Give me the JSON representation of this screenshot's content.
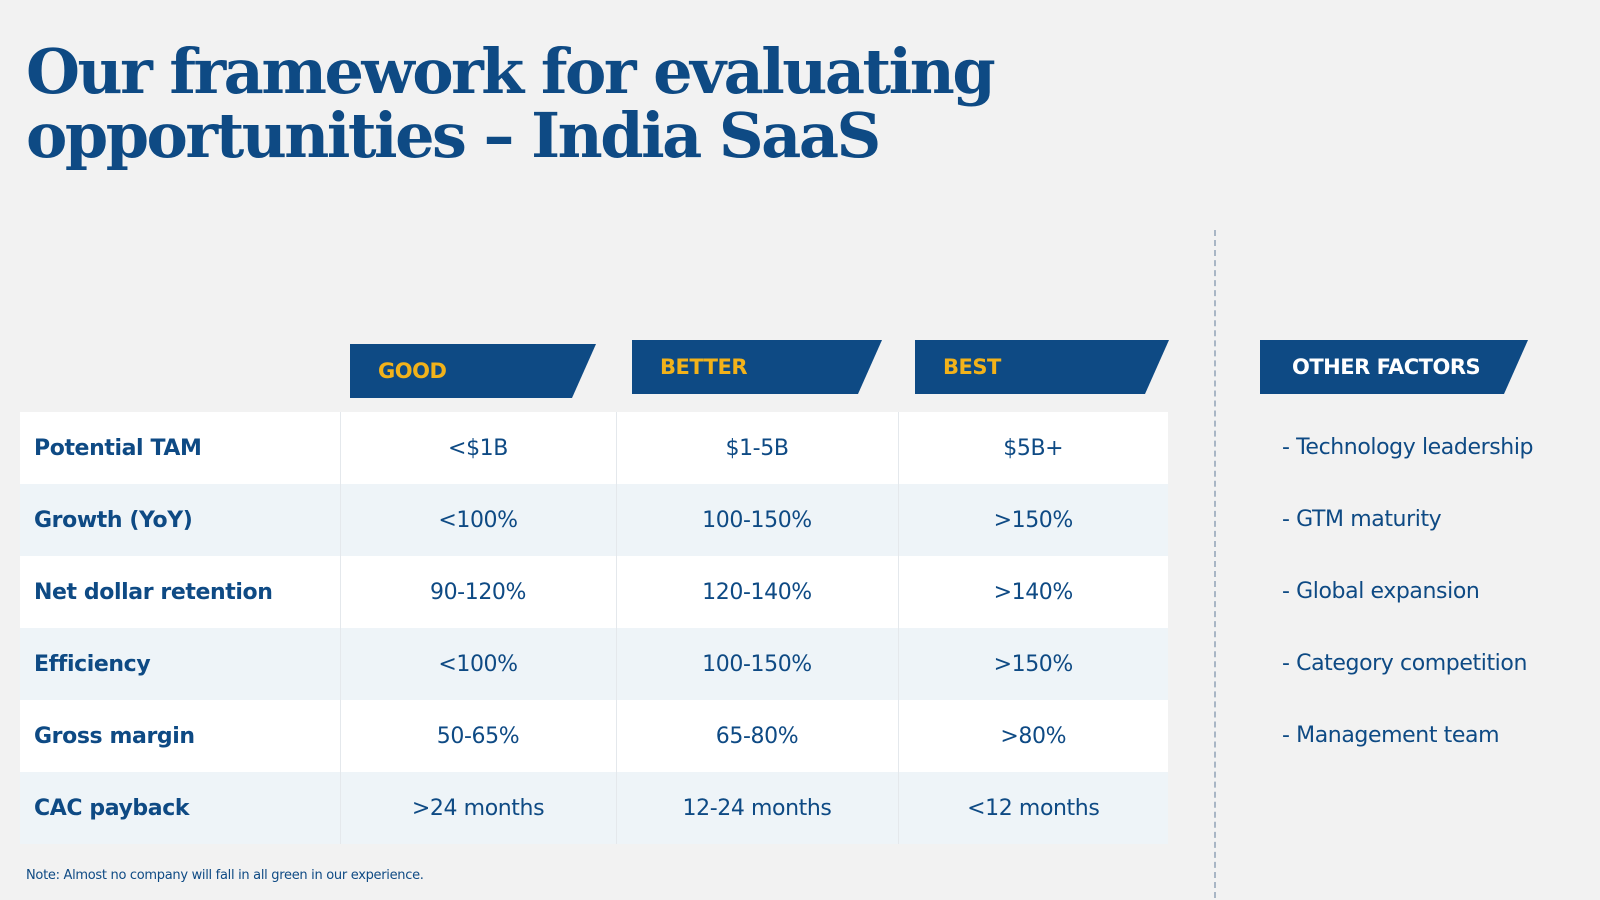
{
  "title": {
    "line1": "Our framework for evaluating",
    "line2": "opportunities – India SaaS"
  },
  "tiers": {
    "good": "GOOD",
    "better": "BETTER",
    "best": "BEST"
  },
  "other_factors": {
    "heading": "OTHER FACTORS",
    "items": [
      "- Technology leadership",
      "- GTM maturity",
      "- Global expansion",
      "- Category competition",
      "- Management team"
    ]
  },
  "rows": [
    {
      "label": "Potential TAM",
      "good": "<$1B",
      "better": "$1-5B",
      "best": "$5B+"
    },
    {
      "label": "Growth (YoY)",
      "good": "<100%",
      "better": "100-150%",
      "best": ">150%"
    },
    {
      "label": "Net dollar retention",
      "good": "90-120%",
      "better": "120-140%",
      "best": ">140%"
    },
    {
      "label": "Efficiency",
      "good": "<100%",
      "better": "100-150%",
      "best": ">150%"
    },
    {
      "label": "Gross margin",
      "good": "50-65%",
      "better": "65-80%",
      "best": ">80%"
    },
    {
      "label": "CAC payback",
      "good": ">24 months",
      "better": "12-24 months",
      "best": "<12 months"
    }
  ],
  "note": "Note: Almost no company will fall in all green in our experience.",
  "colors": {
    "navy": "#0e4a84",
    "gold": "#f2b21a",
    "background": "#f2f2f2",
    "row_alt": "#eef4f8"
  }
}
